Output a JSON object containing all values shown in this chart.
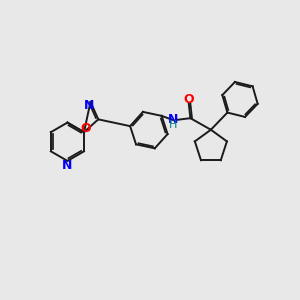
{
  "bg_color": "#e8e8e8",
  "bond_color": "#1a1a1a",
  "N_color": "#0000ff",
  "O_color": "#ff0000",
  "NH_color": "#008080",
  "line_width": 1.4,
  "dbo": 0.055,
  "figsize": [
    3.0,
    3.0
  ],
  "dpi": 100,
  "xlim": [
    -0.5,
    8.5
  ],
  "ylim": [
    1.0,
    6.5
  ]
}
